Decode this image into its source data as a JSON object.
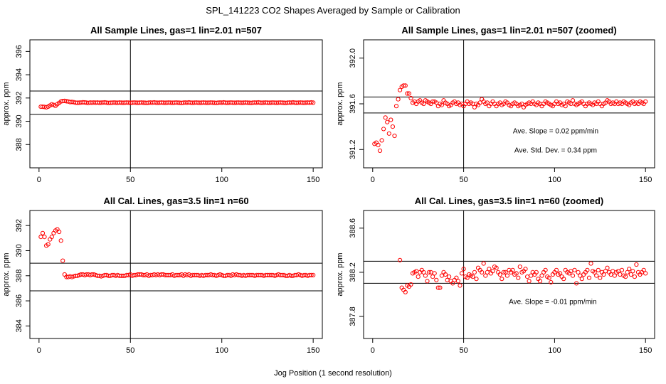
{
  "figure": {
    "title": "SPL_141223  CO2 Shapes Averaged by Sample or Calibration",
    "xlabel": "Jog Position (1 second resolution)"
  },
  "chart_data": [
    {
      "type": "scatter",
      "title": "All Sample Lines, gas=1 lin=2.01 n=507",
      "ylabel": "approx. ppm",
      "xlim": [
        -5,
        155
      ],
      "ylim": [
        386,
        397
      ],
      "xticks": [
        0,
        50,
        100,
        150
      ],
      "yticks": [
        388,
        390,
        392,
        394,
        396
      ],
      "hlines": [
        392.6,
        390.6
      ],
      "vlines": [
        50
      ],
      "color": "#ff0000",
      "annotations": [],
      "x": [
        1,
        2,
        3,
        4,
        5,
        6,
        7,
        8,
        9,
        10,
        11,
        12,
        13,
        14,
        15,
        16,
        17,
        18,
        19,
        20,
        21,
        22,
        23,
        24,
        25,
        26,
        27,
        28,
        29,
        30,
        31,
        32,
        33,
        34,
        35,
        36,
        37,
        38,
        39,
        40,
        41,
        42,
        43,
        44,
        45,
        46,
        47,
        48,
        49,
        50,
        51,
        52,
        53,
        54,
        55,
        56,
        57,
        58,
        59,
        60,
        61,
        62,
        63,
        64,
        65,
        66,
        67,
        68,
        69,
        70,
        71,
        72,
        73,
        74,
        75,
        76,
        77,
        78,
        79,
        80,
        81,
        82,
        83,
        84,
        85,
        86,
        87,
        88,
        89,
        90,
        91,
        92,
        93,
        94,
        95,
        96,
        97,
        98,
        99,
        100,
        101,
        102,
        103,
        104,
        105,
        106,
        107,
        108,
        109,
        110,
        111,
        112,
        113,
        114,
        115,
        116,
        117,
        118,
        119,
        120,
        121,
        122,
        123,
        124,
        125,
        126,
        127,
        128,
        129,
        130,
        131,
        132,
        133,
        134,
        135,
        136,
        137,
        138,
        139,
        140,
        141,
        142,
        143,
        144,
        145,
        146,
        147,
        148,
        149,
        150
      ],
      "y": [
        391.25,
        391.25,
        391.23,
        391.2,
        391.26,
        391.36,
        391.46,
        391.4,
        391.33,
        391.47,
        391.58,
        391.7,
        391.74,
        391.75,
        391.72,
        391.7,
        391.65,
        391.66,
        391.64,
        391.6,
        391.59,
        391.6,
        391.61,
        391.63,
        391.62,
        391.6,
        391.58,
        391.61,
        391.6,
        391.61,
        391.6,
        391.61,
        391.59,
        391.6,
        391.61,
        391.62,
        391.6,
        391.58,
        391.59,
        391.6,
        391.61,
        391.6,
        391.59,
        391.61,
        391.6,
        391.59,
        391.6,
        391.61,
        391.6,
        391.59,
        391.6,
        391.61,
        391.6,
        391.59,
        391.6,
        391.61,
        391.6,
        391.59,
        391.58,
        391.6,
        391.61,
        391.6,
        391.62,
        391.6,
        391.59,
        391.6,
        391.61,
        391.6,
        391.59,
        391.6,
        391.61,
        391.6,
        391.59,
        391.6,
        391.61,
        391.6,
        391.59,
        391.58,
        391.6,
        391.61,
        391.6,
        391.62,
        391.6,
        391.59,
        391.6,
        391.61,
        391.6,
        391.59,
        391.6,
        391.61,
        391.6,
        391.59,
        391.6,
        391.61,
        391.6,
        391.59,
        391.58,
        391.6,
        391.61,
        391.6,
        391.62,
        391.6,
        391.59,
        391.6,
        391.61,
        391.6,
        391.59,
        391.6,
        391.61,
        391.6,
        391.59,
        391.6,
        391.61,
        391.6,
        391.59,
        391.58,
        391.6,
        391.61,
        391.6,
        391.62,
        391.6,
        391.59,
        391.6,
        391.61,
        391.6,
        391.59,
        391.6,
        391.61,
        391.6,
        391.59,
        391.6,
        391.61,
        391.6,
        391.59,
        391.58,
        391.6,
        391.61,
        391.6,
        391.62,
        391.6,
        391.59,
        391.6,
        391.61,
        391.6,
        391.59,
        391.6,
        391.61,
        391.6,
        391.62,
        391.6
      ]
    },
    {
      "type": "scatter",
      "title": "All Sample Lines, gas=1 lin=2.01 n=507 (zoomed)",
      "ylabel": "approx. ppm",
      "xlim": [
        -5,
        155
      ],
      "ylim": [
        391.04,
        392.16
      ],
      "xticks": [
        0,
        50,
        100,
        150
      ],
      "yticks": [
        391.2,
        391.6,
        392.0
      ],
      "hlines": [
        391.66,
        391.52
      ],
      "vlines": [
        50
      ],
      "color": "#ff0000",
      "annotations": [
        "Ave. Slope =  0.02  ppm/min",
        "Ave. Std. Dev. =  0.34  ppm"
      ],
      "x": [
        1,
        2,
        3,
        4,
        5,
        6,
        7,
        8,
        9,
        10,
        11,
        12,
        13,
        14,
        15,
        16,
        17,
        18,
        19,
        20,
        21,
        22,
        23,
        24,
        25,
        26,
        27,
        28,
        29,
        30,
        31,
        32,
        33,
        34,
        35,
        36,
        37,
        38,
        39,
        40,
        41,
        42,
        43,
        44,
        45,
        46,
        47,
        48,
        49,
        50,
        51,
        52,
        53,
        54,
        55,
        56,
        57,
        58,
        59,
        60,
        61,
        62,
        63,
        64,
        65,
        66,
        67,
        68,
        69,
        70,
        71,
        72,
        73,
        74,
        75,
        76,
        77,
        78,
        79,
        80,
        81,
        82,
        83,
        84,
        85,
        86,
        87,
        88,
        89,
        90,
        91,
        92,
        93,
        94,
        95,
        96,
        97,
        98,
        99,
        100,
        101,
        102,
        103,
        104,
        105,
        106,
        107,
        108,
        109,
        110,
        111,
        112,
        113,
        114,
        115,
        116,
        117,
        118,
        119,
        120,
        121,
        122,
        123,
        124,
        125,
        126,
        127,
        128,
        129,
        130,
        131,
        132,
        133,
        134,
        135,
        136,
        137,
        138,
        139,
        140,
        141,
        142,
        143,
        144,
        145,
        146,
        147,
        148,
        149,
        150
      ],
      "y": [
        391.25,
        391.26,
        391.24,
        391.19,
        391.28,
        391.38,
        391.48,
        391.44,
        391.34,
        391.46,
        391.4,
        391.32,
        391.58,
        391.64,
        391.72,
        391.75,
        391.76,
        391.76,
        391.69,
        391.69,
        391.65,
        391.61,
        391.62,
        391.6,
        391.62,
        391.63,
        391.61,
        391.6,
        391.63,
        391.62,
        391.61,
        391.6,
        391.62,
        391.62,
        391.61,
        391.58,
        391.6,
        391.59,
        391.63,
        391.61,
        391.6,
        391.58,
        391.59,
        391.61,
        391.62,
        391.6,
        391.61,
        391.59,
        391.6,
        391.58,
        391.6,
        391.62,
        391.6,
        391.61,
        391.6,
        391.57,
        391.6,
        391.59,
        391.61,
        391.64,
        391.62,
        391.6,
        391.61,
        391.58,
        391.6,
        391.62,
        391.6,
        391.58,
        391.6,
        391.61,
        391.59,
        391.6,
        391.62,
        391.61,
        391.59,
        391.58,
        391.6,
        391.61,
        391.6,
        391.58,
        391.59,
        391.6,
        391.57,
        391.59,
        391.6,
        391.61,
        391.6,
        391.62,
        391.6,
        391.59,
        391.61,
        391.6,
        391.58,
        391.6,
        391.62,
        391.61,
        391.6,
        391.59,
        391.58,
        391.6,
        391.62,
        391.6,
        391.61,
        391.59,
        391.6,
        391.58,
        391.62,
        391.61,
        391.6,
        391.63,
        391.6,
        391.59,
        391.6,
        391.61,
        391.62,
        391.6,
        391.58,
        391.6,
        391.61,
        391.6,
        391.59,
        391.61,
        391.6,
        391.62,
        391.6,
        391.58,
        391.6,
        391.61,
        391.63,
        391.62,
        391.6,
        391.61,
        391.6,
        391.62,
        391.6,
        391.61,
        391.6,
        391.62,
        391.61,
        391.6,
        391.59,
        391.61,
        391.62,
        391.6,
        391.61,
        391.6,
        391.62,
        391.61,
        391.6,
        391.62
      ]
    },
    {
      "type": "scatter",
      "title": "All Cal. Lines, gas=3.5 lin=1 n=60",
      "ylabel": "approx. ppm",
      "xlim": [
        -5,
        155
      ],
      "ylim": [
        383,
        393.2
      ],
      "xticks": [
        0,
        50,
        100,
        150
      ],
      "yticks": [
        384,
        386,
        388,
        390,
        392
      ],
      "hlines": [
        389,
        386.8
      ],
      "vlines": [
        50
      ],
      "color": "#ff0000",
      "annotations": [],
      "x": [
        1,
        2,
        3,
        4,
        5,
        6,
        7,
        8,
        9,
        10,
        11,
        12,
        13,
        14,
        15,
        16,
        17,
        18,
        19,
        20,
        21,
        22,
        23,
        24,
        25,
        26,
        27,
        28,
        29,
        30,
        31,
        32,
        33,
        34,
        35,
        36,
        37,
        38,
        39,
        40,
        41,
        42,
        43,
        44,
        45,
        46,
        47,
        48,
        49,
        50,
        51,
        52,
        53,
        54,
        55,
        56,
        57,
        58,
        59,
        60,
        61,
        62,
        63,
        64,
        65,
        66,
        67,
        68,
        69,
        70,
        71,
        72,
        73,
        74,
        75,
        76,
        77,
        78,
        79,
        80,
        81,
        82,
        83,
        84,
        85,
        86,
        87,
        88,
        89,
        90,
        91,
        92,
        93,
        94,
        95,
        96,
        97,
        98,
        99,
        100,
        101,
        102,
        103,
        104,
        105,
        106,
        107,
        108,
        109,
        110,
        111,
        112,
        113,
        114,
        115,
        116,
        117,
        118,
        119,
        120,
        121,
        122,
        123,
        124,
        125,
        126,
        127,
        128,
        129,
        130,
        131,
        132,
        133,
        134,
        135,
        136,
        137,
        138,
        139,
        140,
        141,
        142,
        143,
        144,
        145,
        146,
        147,
        148,
        149,
        150
      ],
      "y": [
        391.1,
        391.4,
        391.1,
        390.4,
        390.5,
        390.9,
        391.1,
        391.4,
        391.6,
        391.7,
        391.5,
        390.8,
        389.2,
        388.1,
        387.9,
        387.9,
        387.95,
        387.9,
        387.95,
        388.0,
        388.0,
        388.05,
        388.1,
        388.1,
        388.05,
        388.1,
        388.1,
        388.05,
        388.1,
        388.1,
        388.05,
        388.0,
        388.0,
        387.95,
        388.0,
        388.05,
        388.05,
        388.0,
        388.0,
        388.05,
        388.05,
        388.0,
        388.05,
        388.0,
        388.0,
        388.0,
        388.0,
        388.05,
        388.05,
        388.1,
        388.0,
        388.05,
        388.05,
        388.1,
        388.1,
        388.1,
        388.05,
        388.05,
        388.1,
        388.0,
        388.05,
        388.05,
        388.1,
        388.05,
        388.1,
        388.05,
        388.1,
        388.1,
        388.05,
        388.05,
        388.05,
        388.05,
        388.1,
        388.0,
        388.05,
        388.05,
        388.05,
        388.1,
        388.0,
        388.1,
        388.05,
        388.1,
        388.0,
        388.05,
        388.05,
        388.05,
        388.05,
        388.0,
        388.05,
        388.0,
        388.05,
        388.05,
        388.05,
        388.1,
        388.05,
        388.05,
        388.0,
        388.05,
        388.1,
        388.05,
        388.0,
        388.0,
        388.05,
        388.05,
        388.0,
        388.1,
        388.05,
        388.1,
        388.05,
        388.05,
        388.0,
        388.05,
        388.0,
        388.05,
        388.05,
        388.05,
        388.05,
        388.0,
        388.05,
        388.05,
        388.05,
        388.05,
        388.0,
        388.05,
        388.05,
        388.05,
        388.05,
        388.05,
        388.0,
        388.05,
        388.1,
        388.05,
        388.05,
        388.05,
        388.0,
        388.0,
        388.05,
        388.0,
        388.0,
        388.05,
        388.05,
        388.1,
        388.05,
        388.0,
        388.05,
        388.05,
        388.0,
        388.05,
        388.05,
        388.05
      ]
    },
    {
      "type": "scatter",
      "title": "All Cal. Lines, gas=3.5 lin=1 n=60 (zoomed)",
      "ylabel": "approx. ppm",
      "xlim": [
        -5,
        155
      ],
      "ylim": [
        387.6,
        388.76
      ],
      "xticks": [
        0,
        50,
        100,
        150
      ],
      "yticks": [
        387.8,
        388.2,
        388.6
      ],
      "hlines": [
        388.3,
        388.1
      ],
      "vlines": [
        50
      ],
      "color": "#ff0000",
      "annotations": [
        "Ave. Slope =  -0.01  ppm/min"
      ],
      "x": [
        15,
        16,
        17,
        18,
        19,
        20,
        21,
        22,
        23,
        24,
        25,
        26,
        27,
        28,
        29,
        30,
        31,
        32,
        33,
        34,
        35,
        36,
        37,
        38,
        39,
        40,
        41,
        42,
        43,
        44,
        45,
        46,
        47,
        48,
        49,
        50,
        51,
        52,
        53,
        54,
        55,
        56,
        57,
        58,
        59,
        60,
        61,
        62,
        63,
        64,
        65,
        66,
        67,
        68,
        69,
        70,
        71,
        72,
        73,
        74,
        75,
        76,
        77,
        78,
        79,
        80,
        81,
        82,
        83,
        84,
        85,
        86,
        87,
        88,
        89,
        90,
        91,
        92,
        93,
        94,
        95,
        96,
        97,
        98,
        99,
        100,
        101,
        102,
        103,
        104,
        105,
        106,
        107,
        108,
        109,
        110,
        111,
        112,
        113,
        114,
        115,
        116,
        117,
        118,
        119,
        120,
        121,
        122,
        123,
        124,
        125,
        126,
        127,
        128,
        129,
        130,
        131,
        132,
        133,
        134,
        135,
        136,
        137,
        138,
        139,
        140,
        141,
        142,
        143,
        144,
        145,
        146,
        147,
        148,
        149,
        150
      ],
      "y": [
        388.31,
        388.06,
        388.04,
        388.02,
        388.08,
        388.07,
        388.09,
        388.19,
        388.2,
        388.21,
        388.16,
        388.2,
        388.22,
        388.2,
        388.17,
        388.12,
        388.2,
        388.2,
        388.16,
        388.19,
        388.13,
        388.06,
        388.06,
        388.17,
        388.2,
        388.18,
        388.13,
        388.16,
        388.12,
        388.1,
        388.13,
        388.15,
        388.12,
        388.08,
        388.19,
        388.23,
        388.16,
        388.15,
        388.18,
        388.17,
        388.16,
        388.2,
        388.14,
        388.24,
        388.22,
        388.2,
        388.28,
        388.17,
        388.2,
        388.23,
        388.19,
        388.21,
        388.25,
        388.24,
        388.2,
        388.18,
        388.14,
        388.2,
        388.2,
        388.17,
        388.22,
        388.2,
        388.22,
        388.18,
        388.19,
        388.15,
        388.25,
        388.2,
        388.21,
        388.23,
        388.16,
        388.12,
        388.17,
        388.2,
        388.18,
        388.2,
        388.14,
        388.12,
        388.17,
        388.2,
        388.22,
        388.16,
        388.15,
        388.11,
        388.18,
        388.2,
        388.22,
        388.18,
        388.19,
        388.16,
        388.14,
        388.22,
        388.2,
        388.19,
        388.21,
        388.17,
        388.22,
        388.1,
        388.2,
        388.17,
        388.14,
        388.18,
        388.2,
        388.22,
        388.15,
        388.28,
        388.21,
        388.2,
        388.17,
        388.22,
        388.15,
        388.2,
        388.18,
        388.21,
        388.24,
        388.2,
        388.18,
        388.21,
        388.17,
        388.2,
        388.21,
        388.18,
        388.22,
        388.17,
        388.16,
        388.2,
        388.23,
        388.18,
        388.21,
        388.16,
        388.27,
        388.2,
        388.18,
        388.2,
        388.22,
        388.19
      ]
    }
  ]
}
